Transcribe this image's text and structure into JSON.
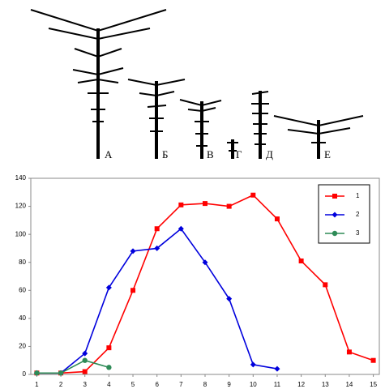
{
  "figure_labels": [
    "А",
    "Б",
    "В",
    "Г",
    "Д",
    "Е"
  ],
  "chart_data": {
    "type": "line",
    "x": [
      1,
      2,
      3,
      4,
      5,
      6,
      7,
      8,
      9,
      10,
      11,
      12,
      13,
      14,
      15
    ],
    "series": [
      {
        "name": "1",
        "color": "#ff0000",
        "marker": "square",
        "values": [
          1,
          1,
          2,
          19,
          60,
          104,
          121,
          122,
          120,
          128,
          111,
          81,
          64,
          16,
          10
        ]
      },
      {
        "name": "2",
        "color": "#0000dd",
        "marker": "diamond",
        "values": [
          1,
          1,
          15,
          62,
          88,
          90,
          104,
          80,
          54,
          7,
          4,
          null,
          null,
          null,
          null
        ]
      },
      {
        "name": "3",
        "color": "#2e8b57",
        "marker": "circle",
        "values": [
          1,
          1,
          10,
          5,
          null,
          null,
          null,
          null,
          null,
          null,
          null,
          null,
          null,
          null,
          null
        ]
      }
    ],
    "xlim": [
      0.75,
      15.25
    ],
    "xticks": [
      1,
      2,
      3,
      4,
      5,
      6,
      7,
      8,
      9,
      10,
      11,
      12,
      13,
      14,
      15
    ],
    "ylim": [
      0,
      140
    ],
    "yticks": [
      0,
      20,
      40,
      60,
      80,
      100,
      120,
      140
    ],
    "grid": false,
    "legend": "top-right"
  }
}
